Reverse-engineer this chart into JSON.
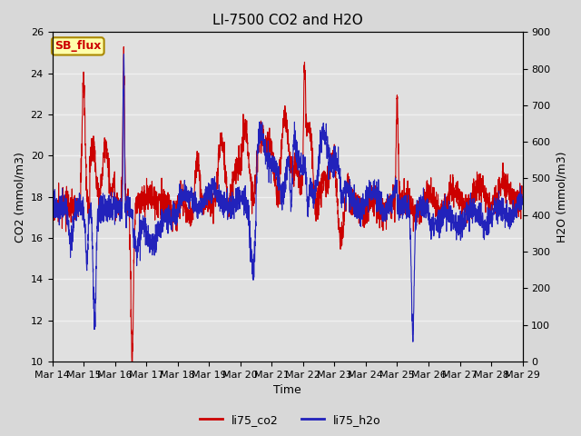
{
  "title": "LI-7500 CO2 and H2O",
  "xlabel": "Time",
  "ylabel_left": "CO2 (mmol/m3)",
  "ylabel_right": "H2O (mmol/m3)",
  "ylim_left": [
    10,
    26
  ],
  "ylim_right": [
    0,
    900
  ],
  "yticks_left": [
    10,
    12,
    14,
    16,
    18,
    20,
    22,
    24,
    26
  ],
  "yticks_right": [
    0,
    100,
    200,
    300,
    400,
    500,
    600,
    700,
    800,
    900
  ],
  "xtick_labels": [
    "Mar 14",
    "Mar 15",
    "Mar 16",
    "Mar 17",
    "Mar 18",
    "Mar 19",
    "Mar 20",
    "Mar 21",
    "Mar 22",
    "Mar 23",
    "Mar 24",
    "Mar 25",
    "Mar 26",
    "Mar 27",
    "Mar 28",
    "Mar 29"
  ],
  "co2_color": "#cc0000",
  "h2o_color": "#2222bb",
  "line_width": 0.8,
  "background_color": "#d8d8d8",
  "plot_bg_color": "#e0e0e0",
  "grid_color": "#f0f0f0",
  "annotation_text": "SB_flux",
  "annotation_bg": "#ffffaa",
  "annotation_border": "#aa8800",
  "annotation_text_color": "#cc0000",
  "legend_co2": "li75_co2",
  "legend_h2o": "li75_h2o",
  "title_fontsize": 11,
  "axis_label_fontsize": 9,
  "tick_fontsize": 8,
  "legend_fontsize": 9
}
